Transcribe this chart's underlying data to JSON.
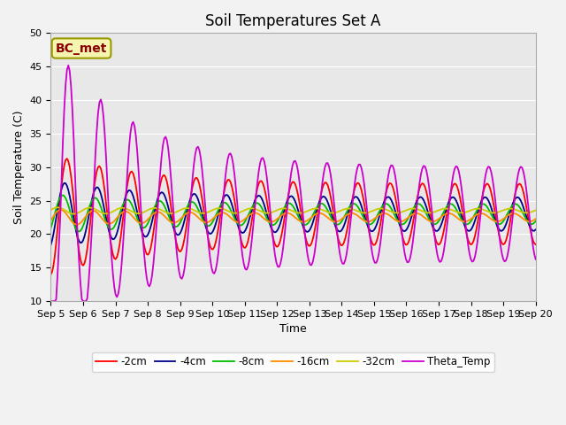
{
  "title": "Soil Temperatures Set A",
  "xlabel": "Time",
  "ylabel": "Soil Temperature (C)",
  "ylim": [
    10,
    50
  ],
  "annotation": "BC_met",
  "series": [
    "-2cm",
    "-4cm",
    "-8cm",
    "-16cm",
    "-32cm",
    "Theta_Temp"
  ],
  "colors": [
    "#ff0000",
    "#00008b",
    "#00bb00",
    "#ff8c00",
    "#cccc00",
    "#cc00cc"
  ],
  "xtick_labels": [
    "Sep 5",
    "Sep 6",
    "Sep 7",
    "Sep 8",
    "Sep 9",
    "Sep 10",
    "Sep 11",
    "Sep 12",
    "Sep 13",
    "Sep 14",
    "Sep 15",
    "Sep 16",
    "Sep 17",
    "Sep 18",
    "Sep 19",
    "Sep 20"
  ],
  "background_color": "#e8e8e8",
  "grid_color": "#ffffff",
  "title_fontsize": 12,
  "label_fontsize": 9,
  "tick_fontsize": 8
}
